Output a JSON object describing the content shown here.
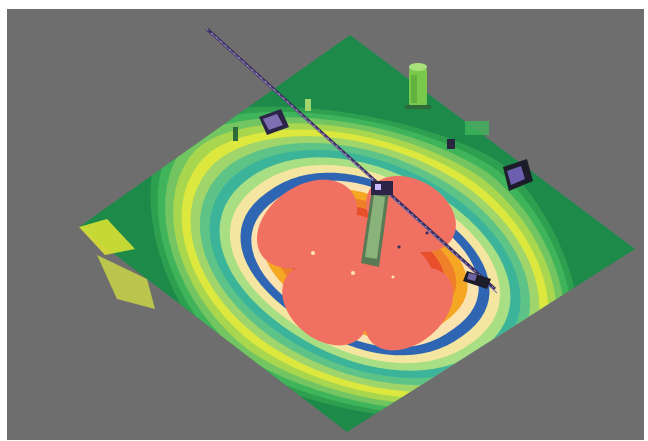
{
  "viewport": {
    "background_color": "#6e6e6e"
  },
  "heatmap": {
    "palette_outer_to_inner": [
      "#2e9e4f",
      "#3fb45a",
      "#73c561",
      "#a9d64f",
      "#dce83e",
      "#9fd56a",
      "#5ec387",
      "#3cb49a",
      "#a8de84",
      "#f4e6a0",
      "#2f66b3",
      "#fbe3b0",
      "#f5a623",
      "#f07f2a",
      "#e8502c",
      "#f07062"
    ],
    "floor_edge_color": "#1e8a4a",
    "accent_yellow": "#e3e632"
  },
  "objects": [
    {
      "name": "crane-boom",
      "color": "#3a2c5c"
    },
    {
      "name": "central-tower",
      "color": "#5a7a55"
    },
    {
      "name": "tank-cylinder",
      "color": "#79c94c"
    },
    {
      "name": "equipment-box",
      "color": "#2b2447"
    },
    {
      "name": "container-box",
      "color": "#1c1c2a"
    }
  ]
}
